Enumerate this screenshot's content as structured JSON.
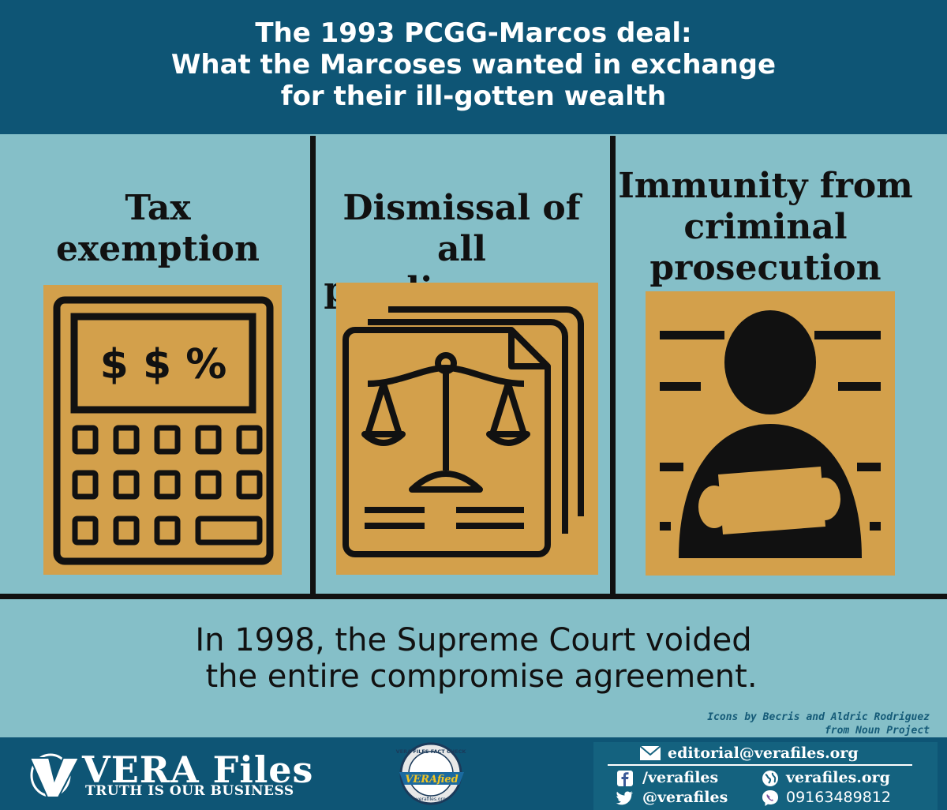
{
  "header": {
    "title_lines": [
      "The 1993 PCGG-Marcos deal:",
      "What the Marcoses wanted in exchange",
      "for their ill-gotten wealth"
    ]
  },
  "columns": [
    {
      "title_lines": [
        "Tax",
        "exemption"
      ],
      "icon": "calculator-icon",
      "calculator_display": "$ $ %"
    },
    {
      "title_lines": [
        "Dismissal of all",
        "pending cases"
      ],
      "icon": "legal-documents-scale-icon"
    },
    {
      "title_lines": [
        "Immunity from",
        "criminal",
        "prosecution"
      ],
      "icon": "mugshot-icon"
    }
  ],
  "conclusion": {
    "lines": [
      "In 1998, the Supreme Court voided",
      "the entire compromise agreement."
    ]
  },
  "credit": {
    "lines": [
      "Icons by Becris and Aldric Rodriguez",
      "from Noun Project"
    ]
  },
  "footer": {
    "brand_name": "VERA Files",
    "tagline": "TRUTH IS OUR BUSINESS",
    "seal_text": "VERA FILES FACT CHECK",
    "seal_badge": "VERAfied",
    "seal_url": "verafiles.org",
    "contact": {
      "email": "editorial@verafiles.org",
      "facebook": "/verafiles",
      "website": "verafiles.org",
      "twitter": "@verafiles",
      "phone": "09163489812"
    }
  },
  "colors": {
    "header_bg": "#0e5575",
    "panel_bg": "#85bfc8",
    "icon_bg": "#d3a04b",
    "ink": "#111111"
  }
}
